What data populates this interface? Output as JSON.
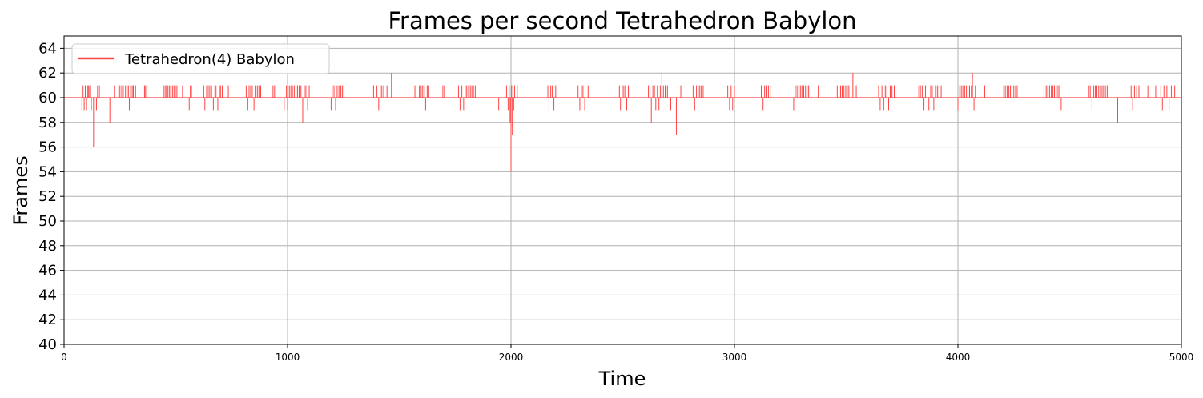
{
  "chart_data": {
    "type": "line",
    "title": "Frames per second Tetrahedron Babylon",
    "xlabel": "Time",
    "ylabel": "Frames",
    "xlim": [
      0,
      5000
    ],
    "ylim": [
      40,
      65
    ],
    "xticks": [
      0,
      1000,
      2000,
      3000,
      4000,
      5000
    ],
    "yticks": [
      40,
      42,
      44,
      46,
      48,
      50,
      52,
      54,
      56,
      58,
      60,
      62,
      64
    ],
    "grid": true,
    "legend_position": "top-left",
    "baseline": 60,
    "series": [
      {
        "name": "Tetrahedron(4) Babylon",
        "color": "#ff4444",
        "points": [
          [
            80,
            59
          ],
          [
            85,
            61
          ],
          [
            90,
            59
          ],
          [
            95,
            61
          ],
          [
            100,
            59
          ],
          [
            105,
            61
          ],
          [
            110,
            61
          ],
          [
            115,
            61
          ],
          [
            122,
            59
          ],
          [
            132,
            56
          ],
          [
            138,
            61
          ],
          [
            145,
            59
          ],
          [
            150,
            61
          ],
          [
            158,
            61
          ],
          [
            205,
            58
          ],
          [
            225,
            61
          ],
          [
            245,
            61
          ],
          [
            250,
            61
          ],
          [
            258,
            61
          ],
          [
            265,
            61
          ],
          [
            275,
            61
          ],
          [
            282,
            61
          ],
          [
            288,
            61
          ],
          [
            292,
            59
          ],
          [
            298,
            61
          ],
          [
            305,
            61
          ],
          [
            310,
            61
          ],
          [
            320,
            61
          ],
          [
            360,
            61
          ],
          [
            365,
            61
          ],
          [
            445,
            61
          ],
          [
            452,
            61
          ],
          [
            458,
            61
          ],
          [
            465,
            61
          ],
          [
            472,
            61
          ],
          [
            478,
            61
          ],
          [
            485,
            61
          ],
          [
            492,
            61
          ],
          [
            498,
            61
          ],
          [
            505,
            61
          ],
          [
            530,
            61
          ],
          [
            560,
            59
          ],
          [
            565,
            61
          ],
          [
            570,
            61
          ],
          [
            625,
            61
          ],
          [
            630,
            59
          ],
          [
            638,
            61
          ],
          [
            645,
            61
          ],
          [
            652,
            61
          ],
          [
            660,
            61
          ],
          [
            668,
            59
          ],
          [
            675,
            61
          ],
          [
            680,
            61
          ],
          [
            688,
            59
          ],
          [
            695,
            61
          ],
          [
            700,
            61
          ],
          [
            708,
            61
          ],
          [
            735,
            61
          ],
          [
            815,
            61
          ],
          [
            822,
            59
          ],
          [
            828,
            61
          ],
          [
            835,
            61
          ],
          [
            842,
            61
          ],
          [
            850,
            59
          ],
          [
            858,
            61
          ],
          [
            865,
            61
          ],
          [
            872,
            61
          ],
          [
            880,
            61
          ],
          [
            935,
            61
          ],
          [
            942,
            61
          ],
          [
            985,
            59
          ],
          [
            995,
            61
          ],
          [
            1000,
            59
          ],
          [
            1008,
            61
          ],
          [
            1015,
            61
          ],
          [
            1022,
            61
          ],
          [
            1030,
            61
          ],
          [
            1038,
            61
          ],
          [
            1045,
            61
          ],
          [
            1052,
            61
          ],
          [
            1060,
            61
          ],
          [
            1068,
            58
          ],
          [
            1075,
            61
          ],
          [
            1082,
            61
          ],
          [
            1090,
            59
          ],
          [
            1097,
            61
          ],
          [
            1195,
            59
          ],
          [
            1200,
            61
          ],
          [
            1208,
            61
          ],
          [
            1215,
            59
          ],
          [
            1222,
            61
          ],
          [
            1230,
            61
          ],
          [
            1238,
            61
          ],
          [
            1245,
            61
          ],
          [
            1252,
            61
          ],
          [
            1385,
            61
          ],
          [
            1400,
            61
          ],
          [
            1408,
            59
          ],
          [
            1415,
            61
          ],
          [
            1422,
            61
          ],
          [
            1430,
            61
          ],
          [
            1445,
            61
          ],
          [
            1465,
            62
          ],
          [
            1570,
            61
          ],
          [
            1590,
            61
          ],
          [
            1598,
            61
          ],
          [
            1605,
            61
          ],
          [
            1612,
            61
          ],
          [
            1618,
            59
          ],
          [
            1625,
            61
          ],
          [
            1632,
            61
          ],
          [
            1695,
            61
          ],
          [
            1702,
            61
          ],
          [
            1765,
            61
          ],
          [
            1772,
            59
          ],
          [
            1780,
            61
          ],
          [
            1788,
            59
          ],
          [
            1795,
            61
          ],
          [
            1802,
            61
          ],
          [
            1810,
            61
          ],
          [
            1818,
            61
          ],
          [
            1825,
            61
          ],
          [
            1832,
            61
          ],
          [
            1840,
            61
          ],
          [
            1945,
            59
          ],
          [
            1980,
            61
          ],
          [
            1987,
            59
          ],
          [
            1992,
            61
          ],
          [
            1996,
            58
          ],
          [
            2000,
            54
          ],
          [
            2003,
            61
          ],
          [
            2006,
            57
          ],
          [
            2009,
            52
          ],
          [
            2012,
            59
          ],
          [
            2016,
            61
          ],
          [
            2020,
            60
          ],
          [
            2028,
            61
          ],
          [
            2165,
            61
          ],
          [
            2170,
            59
          ],
          [
            2178,
            61
          ],
          [
            2185,
            61
          ],
          [
            2192,
            59
          ],
          [
            2200,
            61
          ],
          [
            2300,
            61
          ],
          [
            2308,
            59
          ],
          [
            2315,
            61
          ],
          [
            2322,
            61
          ],
          [
            2330,
            59
          ],
          [
            2345,
            61
          ],
          [
            2485,
            61
          ],
          [
            2490,
            59
          ],
          [
            2498,
            61
          ],
          [
            2505,
            61
          ],
          [
            2512,
            61
          ],
          [
            2518,
            59
          ],
          [
            2525,
            61
          ],
          [
            2532,
            61
          ],
          [
            2615,
            61
          ],
          [
            2622,
            61
          ],
          [
            2628,
            58
          ],
          [
            2635,
            61
          ],
          [
            2642,
            61
          ],
          [
            2648,
            59
          ],
          [
            2655,
            61
          ],
          [
            2662,
            59
          ],
          [
            2668,
            61
          ],
          [
            2675,
            62
          ],
          [
            2682,
            61
          ],
          [
            2690,
            61
          ],
          [
            2700,
            61
          ],
          [
            2715,
            59
          ],
          [
            2740,
            57
          ],
          [
            2760,
            61
          ],
          [
            2815,
            61
          ],
          [
            2822,
            59
          ],
          [
            2830,
            61
          ],
          [
            2838,
            61
          ],
          [
            2845,
            61
          ],
          [
            2852,
            61
          ],
          [
            2860,
            61
          ],
          [
            2970,
            61
          ],
          [
            2978,
            59
          ],
          [
            2985,
            61
          ],
          [
            2992,
            59
          ],
          [
            3000,
            61
          ],
          [
            3120,
            61
          ],
          [
            3128,
            59
          ],
          [
            3135,
            61
          ],
          [
            3145,
            61
          ],
          [
            3152,
            61
          ],
          [
            3160,
            61
          ],
          [
            3265,
            59
          ],
          [
            3272,
            61
          ],
          [
            3280,
            61
          ],
          [
            3288,
            61
          ],
          [
            3295,
            61
          ],
          [
            3302,
            61
          ],
          [
            3310,
            61
          ],
          [
            3318,
            61
          ],
          [
            3325,
            61
          ],
          [
            3332,
            61
          ],
          [
            3375,
            61
          ],
          [
            3460,
            61
          ],
          [
            3468,
            61
          ],
          [
            3475,
            61
          ],
          [
            3482,
            61
          ],
          [
            3490,
            61
          ],
          [
            3498,
            61
          ],
          [
            3505,
            61
          ],
          [
            3512,
            61
          ],
          [
            3530,
            62
          ],
          [
            3545,
            61
          ],
          [
            3645,
            61
          ],
          [
            3652,
            59
          ],
          [
            3660,
            61
          ],
          [
            3668,
            59
          ],
          [
            3675,
            61
          ],
          [
            3682,
            61
          ],
          [
            3690,
            59
          ],
          [
            3697,
            61
          ],
          [
            3705,
            61
          ],
          [
            3715,
            61
          ],
          [
            3825,
            61
          ],
          [
            3832,
            61
          ],
          [
            3840,
            61
          ],
          [
            3848,
            59
          ],
          [
            3855,
            61
          ],
          [
            3862,
            61
          ],
          [
            3870,
            59
          ],
          [
            3878,
            61
          ],
          [
            3885,
            61
          ],
          [
            3892,
            59
          ],
          [
            3900,
            61
          ],
          [
            3908,
            61
          ],
          [
            3915,
            61
          ],
          [
            3925,
            61
          ],
          [
            4000,
            59
          ],
          [
            4008,
            61
          ],
          [
            4015,
            61
          ],
          [
            4022,
            61
          ],
          [
            4030,
            61
          ],
          [
            4038,
            61
          ],
          [
            4045,
            61
          ],
          [
            4052,
            61
          ],
          [
            4060,
            61
          ],
          [
            4065,
            62
          ],
          [
            4072,
            59
          ],
          [
            4078,
            61
          ],
          [
            4120,
            61
          ],
          [
            4205,
            61
          ],
          [
            4212,
            61
          ],
          [
            4220,
            61
          ],
          [
            4228,
            61
          ],
          [
            4235,
            61
          ],
          [
            4242,
            59
          ],
          [
            4250,
            61
          ],
          [
            4258,
            61
          ],
          [
            4265,
            61
          ],
          [
            4385,
            61
          ],
          [
            4395,
            61
          ],
          [
            4402,
            61
          ],
          [
            4410,
            61
          ],
          [
            4418,
            61
          ],
          [
            4425,
            61
          ],
          [
            4432,
            61
          ],
          [
            4440,
            61
          ],
          [
            4448,
            61
          ],
          [
            4455,
            61
          ],
          [
            4462,
            59
          ],
          [
            4585,
            61
          ],
          [
            4592,
            61
          ],
          [
            4600,
            59
          ],
          [
            4608,
            61
          ],
          [
            4615,
            61
          ],
          [
            4622,
            61
          ],
          [
            4630,
            61
          ],
          [
            4638,
            61
          ],
          [
            4645,
            61
          ],
          [
            4652,
            61
          ],
          [
            4660,
            61
          ],
          [
            4668,
            61
          ],
          [
            4715,
            58
          ],
          [
            4775,
            61
          ],
          [
            4782,
            59
          ],
          [
            4790,
            61
          ],
          [
            4800,
            61
          ],
          [
            4810,
            61
          ],
          [
            4850,
            61
          ],
          [
            4885,
            61
          ],
          [
            4908,
            61
          ],
          [
            4915,
            59
          ],
          [
            4922,
            61
          ],
          [
            4935,
            61
          ],
          [
            4945,
            59
          ],
          [
            4955,
            61
          ],
          [
            4970,
            61
          ]
        ]
      }
    ]
  }
}
